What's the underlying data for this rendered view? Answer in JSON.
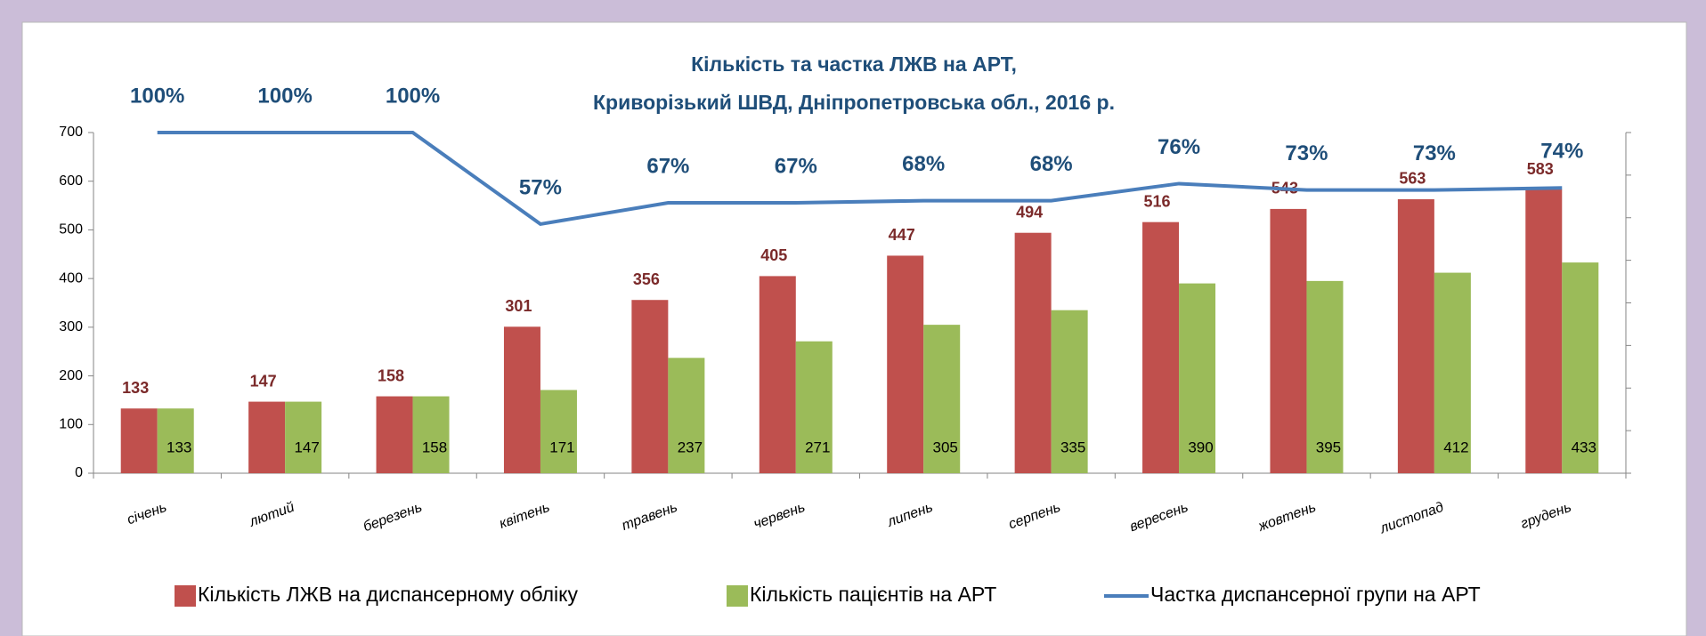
{
  "chart_data": {
    "type": "bar_line",
    "title": [
      "Кількість та частка ЛЖВ на АРТ,",
      "Криворізький ШВД, Дніпропетровська обл., 2016 р."
    ],
    "categories": [
      "січень",
      "лютий",
      "березень",
      "квітень",
      "травень",
      "червень",
      "липень",
      "серпень",
      "вересень",
      "жовтень",
      "листопад",
      "грудень"
    ],
    "series": [
      {
        "name": "Кількість ЛЖВ на диспансерному обліку",
        "color": "#c0504d",
        "type": "bar",
        "values": [
          133,
          147,
          158,
          301,
          356,
          405,
          447,
          494,
          516,
          543,
          563,
          583
        ]
      },
      {
        "name": "Кількість пацієнтів на АРТ",
        "color": "#9bbb59",
        "type": "bar",
        "values": [
          133,
          147,
          158,
          171,
          237,
          271,
          305,
          335,
          390,
          395,
          412,
          433
        ]
      },
      {
        "name": "Частка диспансерної групи на АРТ",
        "color": "#4a7ebb",
        "type": "line",
        "axis": "y2",
        "values": [
          100,
          100,
          100,
          57,
          67,
          67,
          68,
          68,
          76,
          73,
          73,
          74
        ],
        "value_labels": [
          "100%",
          "100%",
          "100%",
          "57%",
          "67%",
          "67%",
          "68%",
          "68%",
          "76%",
          "73%",
          "73%",
          "74%"
        ]
      }
    ],
    "ylim": [
      0,
      700
    ],
    "yticks": [
      0,
      100,
      200,
      300,
      400,
      500,
      600,
      700
    ],
    "y2lim": [
      -60,
      100
    ],
    "y2ticks": [
      -60,
      -40,
      -20,
      0,
      20,
      40,
      60,
      80,
      100
    ],
    "legend": "bottom"
  }
}
